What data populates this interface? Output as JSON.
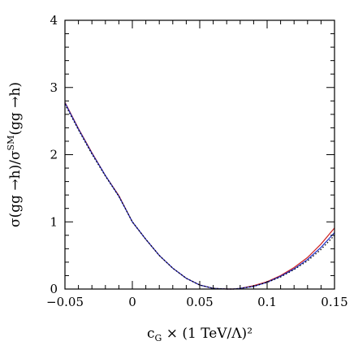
{
  "chart_data": {
    "type": "line",
    "xlabel": "c_G × (1 TeV/Λ)²",
    "ylabel": "σ(gg →h)/σ^SM(gg →h)",
    "xlim": [
      -0.05,
      0.15
    ],
    "ylim": [
      0,
      4
    ],
    "grid": false,
    "legend": "none",
    "x_ticks": [
      -0.05,
      0,
      0.05,
      0.1,
      0.15
    ],
    "x_tick_labels": [
      "−0.05",
      "0",
      "0.05",
      "0.1",
      "0.15"
    ],
    "y_ticks": [
      0,
      1,
      2,
      3,
      4
    ],
    "y_tick_labels": [
      "0",
      "1",
      "2",
      "3",
      "4"
    ],
    "series": [
      {
        "style": "solid",
        "color": "#cc2020",
        "x": [
          -0.05,
          -0.04,
          -0.03,
          -0.02,
          -0.01,
          0,
          0.01,
          0.02,
          0.03,
          0.04,
          0.05,
          0.06,
          0.07,
          0.075,
          0.08,
          0.09,
          0.1,
          0.11,
          0.12,
          0.13,
          0.14,
          0.15
        ],
        "y": [
          2.78,
          2.39,
          2.03,
          1.69,
          1.39,
          1.0,
          0.74,
          0.5,
          0.31,
          0.16,
          0.06,
          0.01,
          0.0,
          0.0,
          0.01,
          0.05,
          0.11,
          0.2,
          0.32,
          0.47,
          0.67,
          0.91
        ]
      },
      {
        "style": "solid",
        "color": "#2030cc",
        "x": [
          -0.05,
          -0.04,
          -0.03,
          -0.02,
          -0.01,
          0,
          0.01,
          0.02,
          0.03,
          0.04,
          0.05,
          0.06,
          0.07,
          0.075,
          0.08,
          0.09,
          0.1,
          0.11,
          0.12,
          0.13,
          0.14,
          0.15
        ],
        "y": [
          2.77,
          2.38,
          2.02,
          1.69,
          1.38,
          1.0,
          0.74,
          0.5,
          0.31,
          0.16,
          0.06,
          0.01,
          0.0,
          0.0,
          0.01,
          0.04,
          0.1,
          0.19,
          0.3,
          0.44,
          0.62,
          0.84
        ]
      },
      {
        "style": "dotted",
        "color": "#000000",
        "x": [
          -0.05,
          -0.04,
          -0.03,
          -0.02,
          -0.01,
          0,
          0.01,
          0.02,
          0.03,
          0.04,
          0.05,
          0.06,
          0.07,
          0.075,
          0.08,
          0.09,
          0.1,
          0.11,
          0.12,
          0.13,
          0.14,
          0.15
        ],
        "y": [
          2.75,
          2.37,
          2.01,
          1.68,
          1.38,
          1.0,
          0.74,
          0.5,
          0.31,
          0.16,
          0.06,
          0.01,
          0.0,
          0.0,
          0.01,
          0.04,
          0.1,
          0.18,
          0.29,
          0.42,
          0.59,
          0.8
        ]
      }
    ]
  }
}
